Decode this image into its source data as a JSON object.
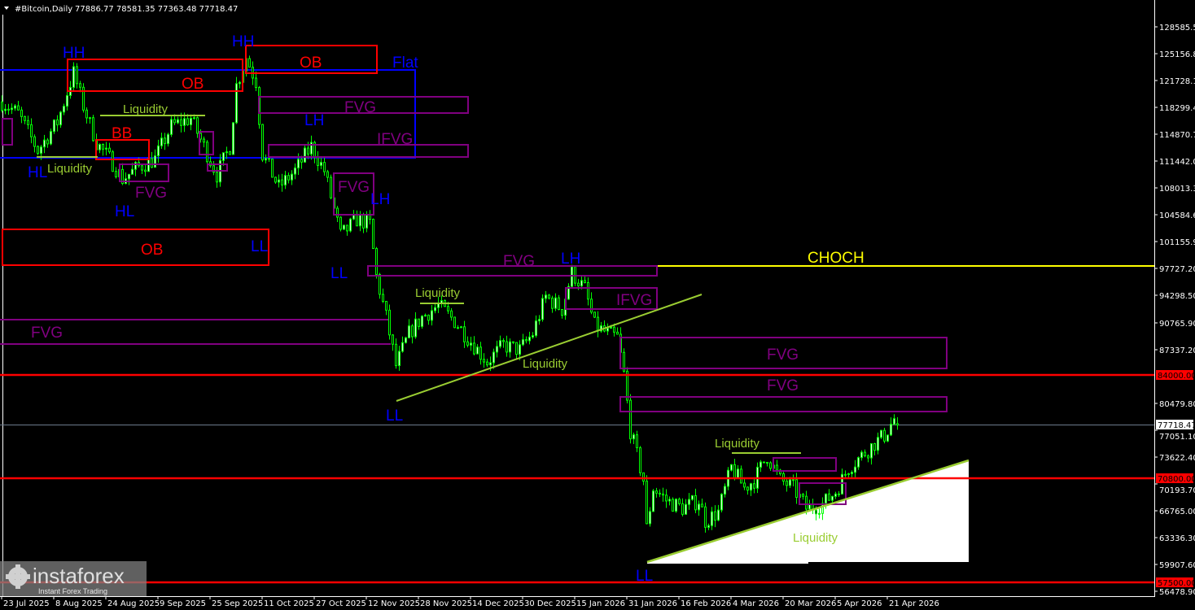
{
  "header": {
    "symbol": "#Bitcoin,Daily",
    "ohlc": "77886.77 78581.35 77363.48 77718.47"
  },
  "colors": {
    "background": "#000000",
    "candle": "#00ff00",
    "structure_label": "#0000ff",
    "order_block": "#ff0000",
    "fvg": "#800080",
    "liquidity": "#9acd32",
    "choch": "#ffff00",
    "level_line": "#ff0000"
  },
  "chart_data": {
    "type": "candlestick",
    "title": "#Bitcoin,Daily",
    "ylim": [
      56478.9,
      128585.5
    ],
    "xlim": [
      "2025-07-23",
      "2026-04-26"
    ],
    "grid": false,
    "last_ohlc": {
      "open": 77886.77,
      "high": 78581.35,
      "low": 77363.48,
      "close": 77718.47
    },
    "close_path": [
      [
        "2025-07-23",
        119000
      ],
      [
        "2025-07-28",
        117500
      ],
      [
        "2025-08-03",
        112800
      ],
      [
        "2025-08-09",
        116400
      ],
      [
        "2025-08-14",
        122700
      ],
      [
        "2025-08-17",
        118500
      ],
      [
        "2025-08-21",
        113800
      ],
      [
        "2025-08-26",
        111200
      ],
      [
        "2025-08-29",
        109150
      ],
      [
        "2025-09-03",
        110700
      ],
      [
        "2025-09-08",
        111700
      ],
      [
        "2025-09-13",
        115900
      ],
      [
        "2025-09-19",
        116900
      ],
      [
        "2025-09-23",
        113300
      ],
      [
        "2025-09-27",
        109700
      ],
      [
        "2025-10-01",
        113300
      ],
      [
        "2025-10-03",
        121100
      ],
      [
        "2025-10-06",
        124700
      ],
      [
        "2025-10-09",
        121600
      ],
      [
        "2025-10-11",
        112300
      ],
      [
        "2025-10-16",
        108100
      ],
      [
        "2025-10-21",
        110200
      ],
      [
        "2025-10-26",
        113300
      ],
      [
        "2025-10-30",
        110200
      ],
      [
        "2025-11-04",
        101900
      ],
      [
        "2025-11-09",
        104000
      ],
      [
        "2025-11-13",
        103400
      ],
      [
        "2025-11-15",
        96700
      ],
      [
        "2025-11-18",
        91500
      ],
      [
        "2025-11-21",
        85300
      ],
      [
        "2025-11-25",
        89400
      ],
      [
        "2025-11-29",
        91500
      ],
      [
        "2025-12-04",
        93000
      ],
      [
        "2025-12-09",
        91000
      ],
      [
        "2025-12-14",
        88400
      ],
      [
        "2025-12-19",
        85800
      ],
      [
        "2025-12-24",
        87900
      ],
      [
        "2025-12-29",
        87300
      ],
      [
        "2026-01-02",
        89400
      ],
      [
        "2026-01-06",
        94100
      ],
      [
        "2026-01-11",
        92500
      ],
      [
        "2026-01-14",
        97200
      ],
      [
        "2026-01-18",
        95100
      ],
      [
        "2026-01-21",
        90400
      ],
      [
        "2026-01-25",
        89400
      ],
      [
        "2026-01-28",
        88900
      ],
      [
        "2026-01-30",
        84200
      ],
      [
        "2026-02-01",
        77000
      ],
      [
        "2026-02-05",
        70700
      ],
      [
        "2026-02-06",
        64500
      ],
      [
        "2026-02-08",
        69700
      ],
      [
        "2026-02-12",
        68100
      ],
      [
        "2026-02-17",
        67100
      ],
      [
        "2026-02-22",
        68100
      ],
      [
        "2026-02-24",
        65500
      ],
      [
        "2026-02-28",
        66600
      ],
      [
        "2026-03-04",
        72300
      ],
      [
        "2026-03-08",
        69700
      ],
      [
        "2026-03-11",
        70700
      ],
      [
        "2026-03-15",
        73800
      ],
      [
        "2026-03-19",
        70700
      ],
      [
        "2026-03-23",
        69700
      ],
      [
        "2026-03-27",
        67100
      ],
      [
        "2026-04-01",
        67600
      ],
      [
        "2026-04-05",
        69200
      ],
      [
        "2026-04-09",
        72300
      ],
      [
        "2026-04-13",
        73800
      ],
      [
        "2026-04-17",
        75400
      ],
      [
        "2026-04-20",
        76400
      ],
      [
        "2026-04-23",
        78500
      ],
      [
        "2026-04-24",
        77718.47
      ]
    ],
    "y_ticks": [
      "128585.50",
      "125156.80",
      "121728.10",
      "118299.40",
      "114870.70",
      "111442.00",
      "108013.30",
      "104584.60",
      "101155.90",
      "97727.20",
      "94298.50",
      "90765.90",
      "87337.20",
      "80479.80",
      "77051.10",
      "73622.40",
      "70193.70",
      "66765.00",
      "63336.30",
      "59907.60",
      "56478.90"
    ],
    "x_ticks": [
      "23 Jul 2025",
      "8 Aug 2025",
      "24 Aug 2025",
      "9 Sep 2025",
      "25 Sep 2025",
      "11 Oct 2025",
      "27 Oct 2025",
      "12 Nov 2025",
      "28 Nov 2025",
      "14 Dec 2025",
      "30 Dec 2025",
      "15 Jan 2026",
      "31 Jan 2026",
      "16 Feb 2026",
      "4 Mar 2026",
      "20 Mar 2026",
      "5 Apr 2026",
      "21 Apr 2026"
    ],
    "price_tags": {
      "current": "77718.47",
      "level_high": "84000.00",
      "level_mid": "70800.00",
      "level_low": "57500.00"
    },
    "annotations": {
      "hh1": "HH",
      "hh2": "HH",
      "hl1": "HL",
      "hl2": "HL",
      "lh1": "LH",
      "lh2": "LH",
      "lh3": "LH",
      "ll1": "LL",
      "ll2": "LL",
      "ll3": "LL",
      "ll4": "LL",
      "ob1": "OB",
      "ob2": "OB",
      "ob3": "OB",
      "bb": "BB",
      "flat": "Flat",
      "choch": "CHOCH",
      "fvg1": "FVG",
      "fvg2": "FVG",
      "fvg3": "FVG",
      "fvg4": "FVG",
      "fvg5": "FVG",
      "fvg6": "FVG",
      "fvg7": "FVG",
      "ifvg1": "IFVG",
      "ifvg2": "IFVG",
      "liq1": "Liquidity",
      "liq2": "Liquidity",
      "liq3": "Liquidity",
      "liq4": "Liquidity",
      "liq5": "Liquidity",
      "liq6": "Liquidity"
    }
  },
  "watermark": {
    "brand": "instaforex",
    "tagline": "Instant Forex Trading"
  }
}
